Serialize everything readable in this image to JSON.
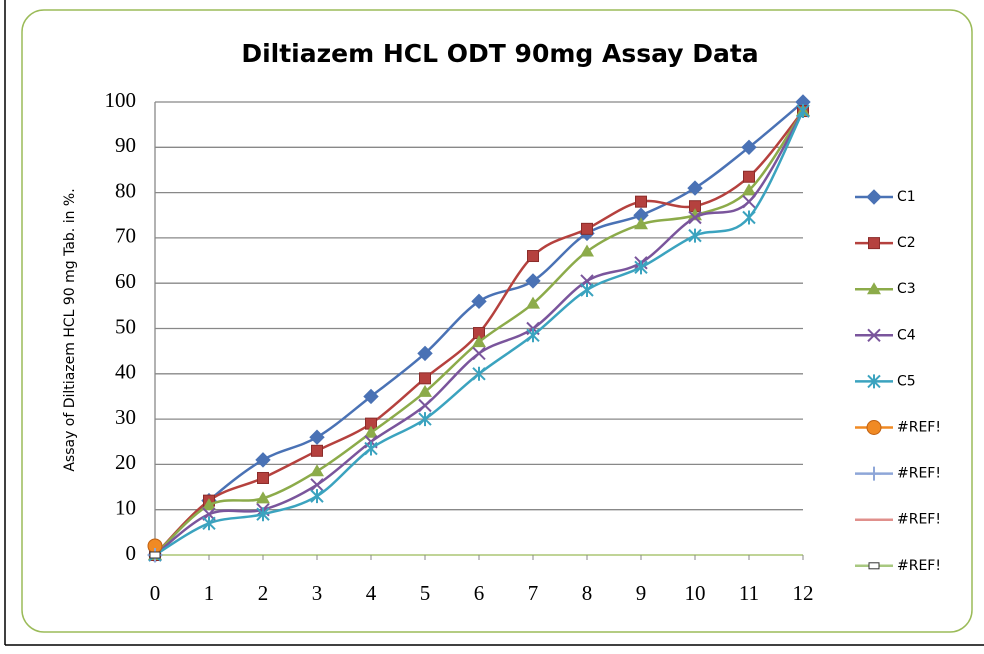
{
  "chart_data": {
    "type": "line",
    "title": "Diltiazem HCL ODT 90mg  Assay Data",
    "y_label": "Assay of Diltiazem HCL 90 mg Tab. in %.",
    "x": [
      0,
      1,
      2,
      3,
      4,
      5,
      6,
      7,
      8,
      9,
      10,
      11,
      12
    ],
    "xlim": [
      0,
      12
    ],
    "xticks": [
      0,
      1,
      2,
      3,
      4,
      5,
      6,
      7,
      8,
      9,
      10,
      11,
      12
    ],
    "ylim": [
      0,
      100
    ],
    "yticks": [
      0,
      10,
      20,
      30,
      40,
      50,
      60,
      70,
      80,
      90,
      100
    ],
    "grid": true,
    "legend": "right",
    "series": [
      {
        "name": "C1",
        "color": "#4a72b5",
        "marker": "diamond",
        "values": [
          0,
          12,
          21,
          26,
          35,
          44.5,
          56,
          60.5,
          71,
          75,
          81,
          90,
          100
        ]
      },
      {
        "name": "C2",
        "color": "#b5413e",
        "marker": "square",
        "values": [
          0,
          12,
          17,
          23,
          29,
          39,
          49,
          66,
          72,
          78,
          77,
          83.5,
          98
        ]
      },
      {
        "name": "C3",
        "color": "#8cab4a",
        "marker": "triangle",
        "values": [
          0,
          11,
          12.5,
          18.5,
          27,
          36,
          47,
          55.5,
          67,
          73,
          75,
          80.5,
          98
        ]
      },
      {
        "name": "C4",
        "color": "#7a559c",
        "marker": "x",
        "values": [
          0,
          9,
          10,
          15.5,
          25,
          33,
          44.5,
          50,
          60.5,
          64.5,
          74.5,
          78,
          98
        ]
      },
      {
        "name": "C5",
        "color": "#3ba3bf",
        "marker": "star",
        "values": [
          0,
          7,
          9,
          13,
          23.5,
          30,
          40,
          48.5,
          58.5,
          63.5,
          70.5,
          74.5,
          98
        ]
      },
      {
        "name": "#REF!",
        "color": "#f08a24",
        "marker": "circle",
        "values": [
          2,
          null,
          null,
          null,
          null,
          null,
          null,
          null,
          null,
          null,
          null,
          null,
          null
        ]
      },
      {
        "name": "#REF!",
        "color": "#8ea6d8",
        "marker": "plus",
        "values": [
          0,
          null,
          null,
          null,
          null,
          null,
          null,
          null,
          null,
          null,
          null,
          null,
          null
        ]
      },
      {
        "name": "#REF!",
        "color": "#e0908c",
        "marker": "none",
        "values": [
          0,
          null,
          null,
          null,
          null,
          null,
          null,
          null,
          null,
          null,
          null,
          null,
          null
        ]
      },
      {
        "name": "#REF!",
        "color": "#a8c880",
        "marker": "dash",
        "values": [
          0,
          null,
          null,
          null,
          null,
          null,
          null,
          null,
          null,
          null,
          null,
          null,
          null
        ]
      }
    ]
  }
}
